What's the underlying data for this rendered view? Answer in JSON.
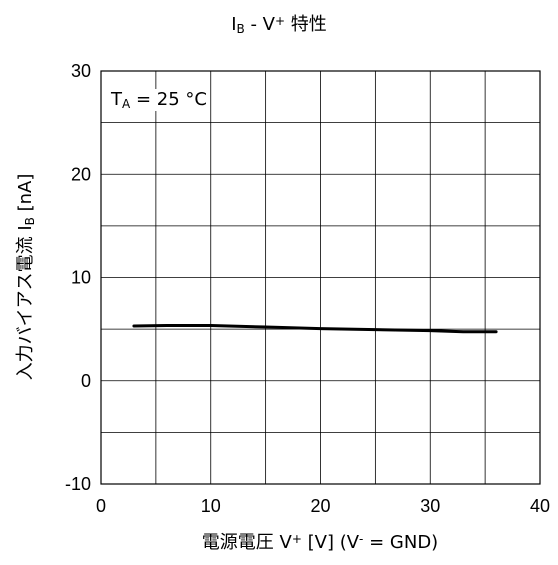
{
  "title": {
    "main": "I",
    "sub": "B",
    "mid": " - V",
    "sup": "+",
    "tail": " 特性"
  },
  "ylabel": {
    "main": "入力バイアス電流 I",
    "sub": "B",
    "tail": " [nA]"
  },
  "xlabel": {
    "main": "電源電圧 V",
    "sup": "+",
    "mid": " [V] (V",
    "sup2": "-",
    "tail": " = GND)"
  },
  "annotation": {
    "main": "T",
    "sub": "A",
    "tail": " = 25 °C"
  },
  "chart_data": {
    "type": "line",
    "xlim": [
      0,
      40
    ],
    "ylim": [
      -10,
      30
    ],
    "x_ticks": [
      0,
      10,
      20,
      30,
      40
    ],
    "y_ticks": [
      -10,
      0,
      10,
      20,
      30
    ],
    "x_ticklabels": [
      "0",
      "10",
      "20",
      "30",
      "40"
    ],
    "y_ticklabels": [
      "-10",
      "0",
      "10",
      "20",
      "30"
    ],
    "grid": true,
    "series": [
      {
        "color": "#000000",
        "x": [
          3,
          6,
          10,
          15,
          20,
          25,
          30,
          33,
          36
        ],
        "y": [
          5.3,
          5.35,
          5.35,
          5.2,
          5.05,
          4.95,
          4.85,
          4.75,
          4.75
        ]
      }
    ]
  }
}
